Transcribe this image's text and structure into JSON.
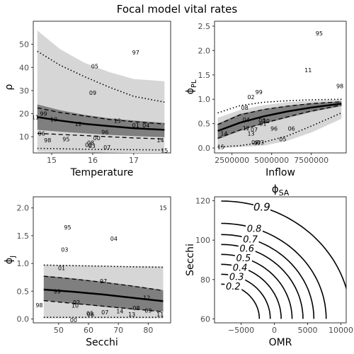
{
  "figure_title": "Focal model vital rates",
  "chart_data": [
    {
      "id": "rho",
      "type": "scatter",
      "title": "",
      "xlabel": "Temperature",
      "ylabel": "ρ",
      "xlim": [
        14.55,
        17.9
      ],
      "ylim": [
        3,
        60
      ],
      "xticks": [
        15,
        16,
        17
      ],
      "yticks": [
        10,
        20,
        30,
        40,
        50
      ],
      "band_outer": {
        "x": [
          14.65,
          15.2,
          15.8,
          16.4,
          17.0,
          17.75
        ],
        "upper": [
          56,
          48,
          42,
          38,
          35,
          34
        ],
        "lower": [
          3.5,
          3.3,
          3.2,
          3.1,
          3.0,
          3.0
        ]
      },
      "band_inner": {
        "x": [
          14.65,
          15.2,
          15.8,
          16.4,
          17.0,
          17.75
        ],
        "upper": [
          24,
          21.5,
          19.5,
          18,
          17,
          16
        ],
        "lower": [
          13,
          12.2,
          11.5,
          10.8,
          10.3,
          9.8
        ]
      },
      "mean_line": {
        "x": [
          14.65,
          15.2,
          15.8,
          16.4,
          17.0,
          17.75
        ],
        "y": [
          18.5,
          17,
          15.6,
          14.6,
          13.7,
          13.0
        ]
      },
      "dashed_lines": [
        {
          "x": [
            14.65,
            15.2,
            15.8,
            16.4,
            17.0,
            17.75
          ],
          "y": [
            22.5,
            20.5,
            19.0,
            17.5,
            16.5,
            15.5
          ]
        },
        {
          "x": [
            14.65,
            15.2,
            15.8,
            16.4,
            17.0,
            17.75
          ],
          "y": [
            11.5,
            11.0,
            10.5,
            10.0,
            9.5,
            9.0
          ]
        }
      ],
      "dotted_lines": [
        {
          "x": [
            14.65,
            15.2,
            15.8,
            16.4,
            17.0,
            17.75
          ],
          "y": [
            47,
            41,
            36,
            31.5,
            27.5,
            25
          ]
        },
        {
          "x": [
            14.65,
            15.2,
            15.8,
            16.4,
            17.0,
            17.75
          ],
          "y": [
            5.0,
            4.8,
            4.6,
            4.5,
            4.4,
            4.3
          ]
        }
      ],
      "points": [
        {
          "label": "97",
          "x": 17.05,
          "y": 46.5
        },
        {
          "label": "05",
          "x": 16.05,
          "y": 40.5
        },
        {
          "label": "09",
          "x": 16.0,
          "y": 29
        },
        {
          "label": "11",
          "x": 14.6,
          "y": 18.5
        },
        {
          "label": "99",
          "x": 14.8,
          "y": 20
        },
        {
          "label": "10",
          "x": 15.05,
          "y": 17.5
        },
        {
          "label": "12",
          "x": 15.65,
          "y": 15.5
        },
        {
          "label": "13",
          "x": 16.6,
          "y": 17
        },
        {
          "label": "01",
          "x": 17.05,
          "y": 15
        },
        {
          "label": "04",
          "x": 17.3,
          "y": 15
        },
        {
          "label": "06",
          "x": 14.75,
          "y": 11.5
        },
        {
          "label": "96",
          "x": 16.3,
          "y": 12
        },
        {
          "label": "98",
          "x": 14.9,
          "y": 8.5
        },
        {
          "label": "95",
          "x": 15.35,
          "y": 9
        },
        {
          "label": "00",
          "x": 16.1,
          "y": 9.5
        },
        {
          "label": "08",
          "x": 15.95,
          "y": 7.5
        },
        {
          "label": "02",
          "x": 15.9,
          "y": 6.5
        },
        {
          "label": "03",
          "x": 15.98,
          "y": 6.0
        },
        {
          "label": "07",
          "x": 16.35,
          "y": 5.5
        },
        {
          "label": "14",
          "x": 17.65,
          "y": 8.5
        },
        {
          "label": "15",
          "x": 17.75,
          "y": 4
        }
      ]
    },
    {
      "id": "phi_pl",
      "type": "scatter",
      "title": "",
      "xlabel": "Inflow",
      "ylabel": "ϕPL",
      "xlim": [
        1400000,
        9700000
      ],
      "ylim": [
        -0.1,
        2.6
      ],
      "xticks": [
        2500000,
        5000000,
        7500000
      ],
      "xticklabels": [
        "2500000",
        "5000000",
        "7500000"
      ],
      "yticks": [
        0.0,
        0.5,
        1.0,
        1.5,
        2.0,
        2.5
      ],
      "band_outer": {
        "x": [
          1600000,
          3000000,
          4500000,
          6000000,
          7500000,
          9400000
        ],
        "upper": [
          0.62,
          0.78,
          0.88,
          0.94,
          0.97,
          0.99
        ],
        "lower": [
          0.0,
          0.02,
          0.05,
          0.15,
          0.32,
          0.6
        ]
      },
      "band_inner": {
        "x": [
          1600000,
          3000000,
          4500000,
          6000000,
          7500000,
          9400000
        ],
        "upper": [
          0.5,
          0.7,
          0.8,
          0.87,
          0.92,
          0.96
        ],
        "lower": [
          0.18,
          0.35,
          0.5,
          0.62,
          0.74,
          0.86
        ]
      },
      "mean_line": {
        "x": [
          1600000,
          3000000,
          4500000,
          6000000,
          7500000,
          9400000
        ],
        "y": [
          0.35,
          0.52,
          0.65,
          0.75,
          0.83,
          0.91
        ]
      },
      "dashed_lines": [
        {
          "x": [
            1600000,
            3000000,
            4500000,
            6000000,
            7500000,
            9400000
          ],
          "y": [
            0.48,
            0.68,
            0.79,
            0.86,
            0.91,
            0.95
          ]
        },
        {
          "x": [
            1600000,
            3000000,
            4500000,
            6000000,
            7500000,
            9400000
          ],
          "y": [
            0.2,
            0.37,
            0.51,
            0.64,
            0.76,
            0.88
          ]
        }
      ],
      "dotted_lines": [
        {
          "x": [
            1600000,
            3000000,
            4500000,
            6000000,
            7500000,
            9400000
          ],
          "y": [
            0.72,
            0.87,
            0.94,
            0.97,
            0.99,
            1.0
          ]
        },
        {
          "x": [
            1600000,
            3000000,
            4500000,
            6000000,
            7500000,
            9400000
          ],
          "y": [
            0.02,
            0.05,
            0.12,
            0.25,
            0.45,
            0.72
          ]
        }
      ],
      "points": [
        {
          "label": "95",
          "x": 8000000,
          "y": 2.35
        },
        {
          "label": "11",
          "x": 7300000,
          "y": 1.6
        },
        {
          "label": "98",
          "x": 9300000,
          "y": 1.27
        },
        {
          "label": "99",
          "x": 4200000,
          "y": 1.15
        },
        {
          "label": "02",
          "x": 3700000,
          "y": 1.05
        },
        {
          "label": "08",
          "x": 3300000,
          "y": 0.83
        },
        {
          "label": "04",
          "x": 3400000,
          "y": 0.58
        },
        {
          "label": "00",
          "x": 4400000,
          "y": 0.57
        },
        {
          "label": "10",
          "x": 4650000,
          "y": 0.55
        },
        {
          "label": "01",
          "x": 4450000,
          "y": 0.5
        },
        {
          "label": "96",
          "x": 5150000,
          "y": 0.4
        },
        {
          "label": "06",
          "x": 6250000,
          "y": 0.4
        },
        {
          "label": "12",
          "x": 3400000,
          "y": 0.41
        },
        {
          "label": "07",
          "x": 3900000,
          "y": 0.38
        },
        {
          "label": "13",
          "x": 3700000,
          "y": 0.3
        },
        {
          "label": "14",
          "x": 2000000,
          "y": 0.3
        },
        {
          "label": "05",
          "x": 5700000,
          "y": 0.18
        },
        {
          "label": "09",
          "x": 3950000,
          "y": 0.12
        },
        {
          "label": "03",
          "x": 4300000,
          "y": 0.12
        },
        {
          "label": "97",
          "x": 4100000,
          "y": 0.1
        },
        {
          "label": "15",
          "x": 1800000,
          "y": 0.02
        }
      ]
    },
    {
      "id": "phi_j",
      "type": "scatter",
      "title": "",
      "xlabel": "Secchi",
      "ylabel": "ϕJ",
      "xlim": [
        41.5,
        87.5
      ],
      "ylim": [
        -0.07,
        2.2
      ],
      "xticks": [
        50,
        60,
        70,
        80
      ],
      "yticks": [
        0.0,
        0.5,
        1.0,
        1.5,
        2.0
      ],
      "band_outer": {
        "x": [
          45,
          55,
          65,
          75,
          85
        ],
        "upper": [
          0.98,
          0.97,
          0.96,
          0.95,
          0.95
        ],
        "lower": [
          0.01,
          0.01,
          0.01,
          0.01,
          0.01
        ]
      },
      "band_inner": {
        "x": [
          45,
          55,
          65,
          75,
          85
        ],
        "upper": [
          0.78,
          0.73,
          0.67,
          0.6,
          0.52
        ],
        "lower": [
          0.33,
          0.28,
          0.22,
          0.17,
          0.13
        ]
      },
      "mean_line": {
        "x": [
          45,
          55,
          65,
          75,
          85
        ],
        "y": [
          0.53,
          0.49,
          0.44,
          0.38,
          0.32
        ]
      },
      "dashed_lines": [
        {
          "x": [
            45,
            55,
            65,
            75,
            85
          ],
          "y": [
            0.77,
            0.72,
            0.66,
            0.59,
            0.51
          ]
        },
        {
          "x": [
            45,
            55,
            65,
            75,
            85
          ],
          "y": [
            0.33,
            0.28,
            0.23,
            0.18,
            0.13
          ]
        }
      ],
      "dotted_lines": [
        {
          "x": [
            45,
            55,
            65,
            75,
            85
          ],
          "y": [
            0.97,
            0.96,
            0.95,
            0.94,
            0.93
          ]
        },
        {
          "x": [
            45,
            55,
            65,
            75,
            85
          ],
          "y": [
            0.03,
            0.03,
            0.03,
            0.03,
            0.03
          ]
        }
      ],
      "points": [
        {
          "label": "15",
          "x": 85,
          "y": 2.0
        },
        {
          "label": "95",
          "x": 53,
          "y": 1.65
        },
        {
          "label": "04",
          "x": 68.5,
          "y": 1.45
        },
        {
          "label": "03",
          "x": 52,
          "y": 1.25
        },
        {
          "label": "01",
          "x": 51,
          "y": 0.92
        },
        {
          "label": "97",
          "x": 65,
          "y": 0.68
        },
        {
          "label": "99",
          "x": 49.5,
          "y": 0.5
        },
        {
          "label": "12",
          "x": 79.5,
          "y": 0.38
        },
        {
          "label": "02",
          "x": 56,
          "y": 0.3
        },
        {
          "label": "08",
          "x": 76,
          "y": 0.2
        },
        {
          "label": "98",
          "x": 43.5,
          "y": 0.25
        },
        {
          "label": "10",
          "x": 55.5,
          "y": 0.24
        },
        {
          "label": "09",
          "x": 80,
          "y": 0.15
        },
        {
          "label": "07",
          "x": 65.5,
          "y": 0.12
        },
        {
          "label": "14",
          "x": 70.5,
          "y": 0.14
        },
        {
          "label": "05",
          "x": 60.5,
          "y": 0.1
        },
        {
          "label": "06",
          "x": 60.7,
          "y": 0.08
        },
        {
          "label": "13",
          "x": 74.5,
          "y": 0.08
        },
        {
          "label": "11",
          "x": 84,
          "y": 0.08
        },
        {
          "label": "00",
          "x": 55,
          "y": -0.02
        }
      ]
    },
    {
      "id": "phi_sa",
      "type": "contour",
      "title": "ϕSA",
      "xlabel": "OMR",
      "ylabel": "Secchi",
      "xlim": [
        -9000,
        10800
      ],
      "ylim": [
        58,
        122
      ],
      "xticks": [
        -5000,
        0,
        5000,
        10000
      ],
      "xticklabels": [
        "−5000",
        "0",
        "5000",
        "10000"
      ],
      "yticks": [
        60,
        80,
        100,
        120
      ],
      "contours": [
        {
          "level": "0.9",
          "r": 0.95
        },
        {
          "level": "0.8",
          "r": 0.77
        },
        {
          "level": "0.7",
          "r": 0.68
        },
        {
          "level": "0.6",
          "r": 0.6
        },
        {
          "level": "0.5",
          "r": 0.52
        },
        {
          "level": "0.4",
          "r": 0.44
        },
        {
          "level": "0.3",
          "r": 0.36
        },
        {
          "level": "0.2",
          "r": 0.28
        }
      ]
    }
  ]
}
